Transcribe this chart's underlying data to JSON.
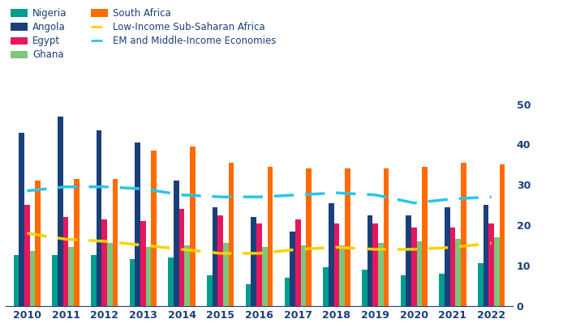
{
  "years": [
    2010,
    2011,
    2012,
    2013,
    2014,
    2015,
    2016,
    2017,
    2018,
    2019,
    2020,
    2021,
    2022
  ],
  "nigeria": [
    12.5,
    12.5,
    12.5,
    11.5,
    12.0,
    7.5,
    5.3,
    7.0,
    9.5,
    9.0,
    7.5,
    8.0,
    10.5
  ],
  "angola": [
    43.0,
    47.0,
    43.5,
    40.5,
    31.0,
    24.5,
    22.0,
    18.5,
    25.5,
    22.5,
    22.5,
    24.5,
    25.0
  ],
  "egypt": [
    25.0,
    22.0,
    21.5,
    21.0,
    24.0,
    22.5,
    20.5,
    21.5,
    20.5,
    20.5,
    19.5,
    19.5,
    20.5
  ],
  "ghana": [
    13.5,
    14.5,
    15.5,
    14.5,
    15.0,
    15.5,
    14.5,
    15.0,
    15.0,
    15.5,
    16.0,
    16.5,
    17.0
  ],
  "south_africa": [
    31.0,
    31.5,
    31.5,
    38.5,
    39.5,
    35.5,
    34.5,
    34.0,
    34.0,
    34.0,
    34.5,
    35.5,
    35.0
  ],
  "low_income": [
    18.0,
    16.5,
    16.0,
    15.0,
    14.0,
    13.0,
    13.0,
    14.0,
    14.5,
    14.0,
    14.0,
    14.5,
    15.5
  ],
  "em_middle": [
    28.5,
    29.5,
    29.5,
    29.0,
    27.5,
    27.0,
    27.0,
    27.5,
    28.0,
    27.5,
    25.5,
    26.5,
    27.0
  ],
  "colors": {
    "nigeria": "#009E8E",
    "angola": "#1B3F7A",
    "egypt": "#E8175D",
    "ghana": "#7DC67B",
    "south_africa": "#FF6B00",
    "low_income": "#FFD000",
    "em_middle": "#29C4F0"
  },
  "ylim": [
    0,
    50
  ],
  "yticks": [
    0,
    10,
    20,
    30,
    40,
    50
  ],
  "bar_width": 0.14
}
